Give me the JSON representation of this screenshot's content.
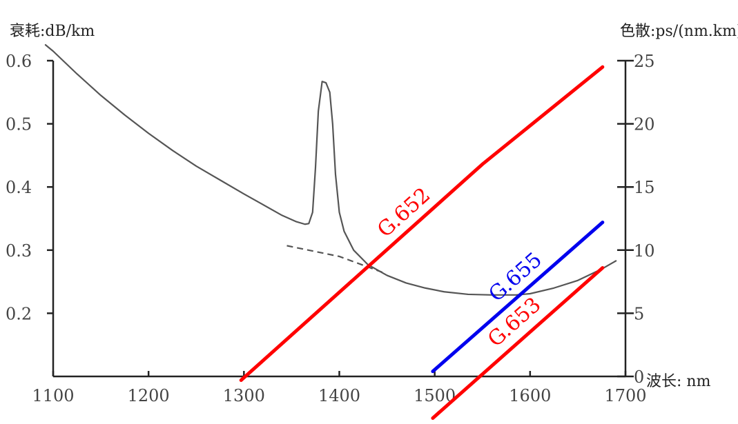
{
  "chart_data": {
    "type": "line",
    "x_axis": {
      "label": "波长: nm",
      "range": [
        1100,
        1700
      ],
      "ticks": [
        "1100",
        "1200",
        "1300",
        "1400",
        "1500",
        "1600",
        "1700"
      ]
    },
    "y_axis_left": {
      "label": "衰耗:dB/km",
      "range": [
        0.1,
        0.6
      ],
      "ticks": [
        "0.2",
        "0.3",
        "0.4",
        "0.5",
        "0.6"
      ]
    },
    "y_axis_right": {
      "label": "色散:ps/(nm.km)",
      "range": [
        0,
        25
      ],
      "ticks": [
        "0",
        "5",
        "10",
        "15",
        "20",
        "25"
      ]
    },
    "attenuation": {
      "axis": "left",
      "color": "#555555",
      "points": [
        [
          1092,
          0.625
        ],
        [
          1100,
          0.615
        ],
        [
          1125,
          0.579
        ],
        [
          1150,
          0.545
        ],
        [
          1175,
          0.514
        ],
        [
          1200,
          0.485
        ],
        [
          1225,
          0.458
        ],
        [
          1250,
          0.433
        ],
        [
          1275,
          0.411
        ],
        [
          1300,
          0.389
        ],
        [
          1320,
          0.372
        ],
        [
          1340,
          0.355
        ],
        [
          1355,
          0.345
        ],
        [
          1364,
          0.341
        ],
        [
          1368,
          0.342
        ],
        [
          1372,
          0.36
        ],
        [
          1375,
          0.43
        ],
        [
          1378,
          0.52
        ],
        [
          1382,
          0.567
        ],
        [
          1386,
          0.565
        ],
        [
          1390,
          0.55
        ],
        [
          1393,
          0.5
        ],
        [
          1396,
          0.42
        ],
        [
          1400,
          0.36
        ],
        [
          1405,
          0.33
        ],
        [
          1415,
          0.3
        ],
        [
          1430,
          0.277
        ],
        [
          1450,
          0.26
        ],
        [
          1470,
          0.248
        ],
        [
          1490,
          0.24
        ],
        [
          1510,
          0.234
        ],
        [
          1535,
          0.23
        ],
        [
          1560,
          0.229
        ],
        [
          1585,
          0.229
        ],
        [
          1600,
          0.231
        ],
        [
          1625,
          0.24
        ],
        [
          1650,
          0.252
        ],
        [
          1675,
          0.27
        ],
        [
          1690,
          0.283
        ]
      ],
      "oh_free_dashed": [
        [
          1345,
          0.307
        ],
        [
          1400,
          0.29
        ],
        [
          1445,
          0.265
        ]
      ]
    },
    "dispersion": [
      {
        "name": "G.652",
        "axis": "right",
        "color": "#ff0000",
        "points": [
          [
            1297,
            -0.3
          ],
          [
            1550,
            16.8
          ],
          [
            1676,
            24.5
          ]
        ]
      },
      {
        "name": "G.655",
        "axis": "right",
        "color": "#0000ee",
        "points": [
          [
            1498,
            0.4
          ],
          [
            1676,
            12.2
          ]
        ]
      },
      {
        "name": "G.653",
        "axis": "right",
        "color": "#ff0000",
        "points": [
          [
            1498,
            -3.3
          ],
          [
            1676,
            8.6
          ]
        ]
      }
    ]
  }
}
